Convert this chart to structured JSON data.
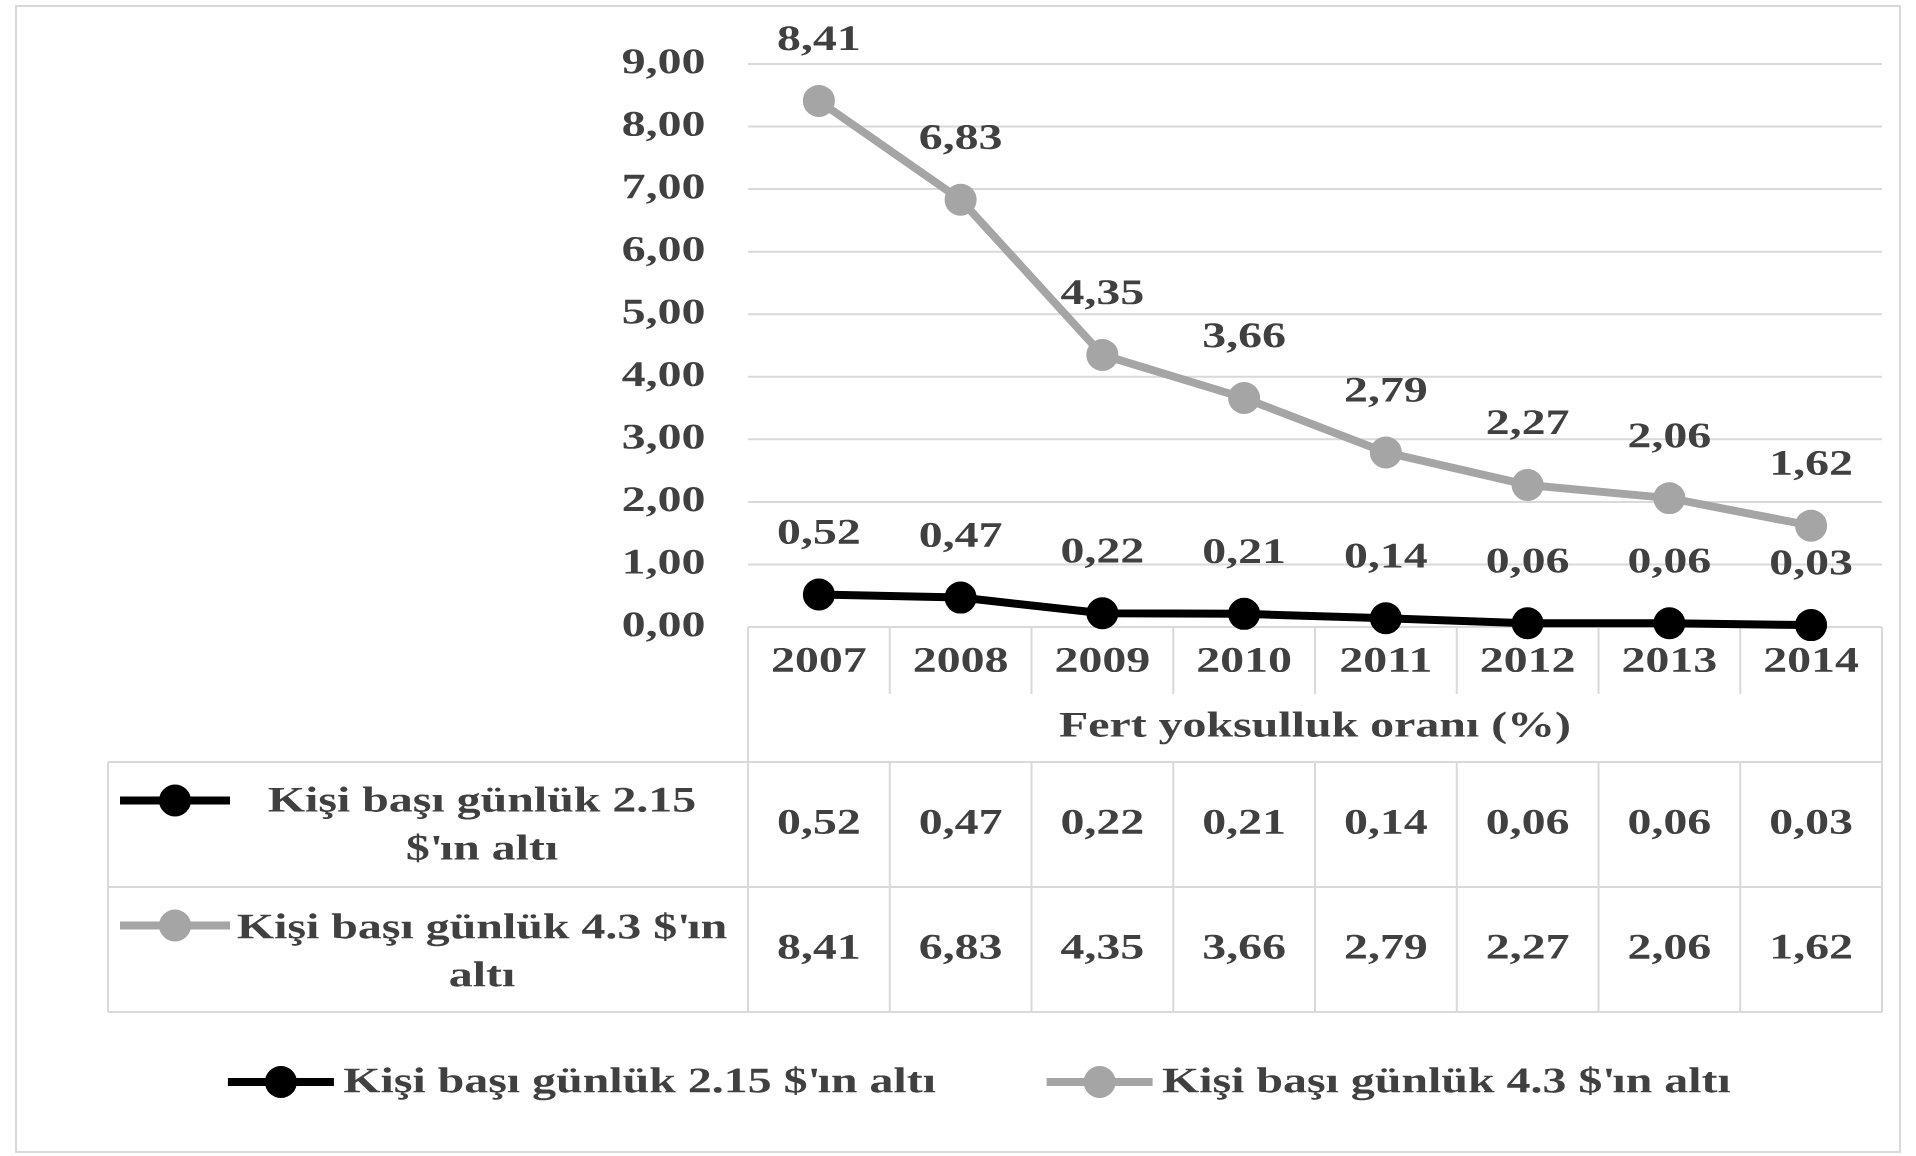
{
  "chart_data": {
    "type": "line",
    "xlabel": "Fert yoksulluk oranı (%)",
    "categories": [
      "2007",
      "2008",
      "2009",
      "2010",
      "2011",
      "2012",
      "2013",
      "2014"
    ],
    "series": [
      {
        "name": "Kişi başı günlük 2.15 $'ın altı",
        "color": "#000000",
        "values": [
          0.52,
          0.47,
          0.22,
          0.21,
          0.14,
          0.06,
          0.06,
          0.03
        ],
        "value_labels": [
          "0,52",
          "0,47",
          "0,22",
          "0,21",
          "0,14",
          "0,06",
          "0,06",
          "0,03"
        ]
      },
      {
        "name": "Kişi başı günlük 4.3 $'ın altı",
        "color": "#a5a5a5",
        "values": [
          8.41,
          6.83,
          4.35,
          3.66,
          2.79,
          2.27,
          2.06,
          1.62
        ],
        "value_labels": [
          "8,41",
          "6,83",
          "4,35",
          "3,66",
          "2,79",
          "2,27",
          "2,06",
          "1,62"
        ]
      }
    ],
    "ylim": [
      0,
      9
    ],
    "yticks": [
      {
        "value": 0,
        "label": "0,00"
      },
      {
        "value": 1,
        "label": "1,00"
      },
      {
        "value": 2,
        "label": "2,00"
      },
      {
        "value": 3,
        "label": "3,00"
      },
      {
        "value": 4,
        "label": "4,00"
      },
      {
        "value": 5,
        "label": "5,00"
      },
      {
        "value": 6,
        "label": "6,00"
      },
      {
        "value": 7,
        "label": "7,00"
      },
      {
        "value": 8,
        "label": "8,00"
      },
      {
        "value": 9,
        "label": "9,00"
      }
    ],
    "grid": "y",
    "legend": "bottom",
    "marker": "circle",
    "line_style": "solid"
  }
}
